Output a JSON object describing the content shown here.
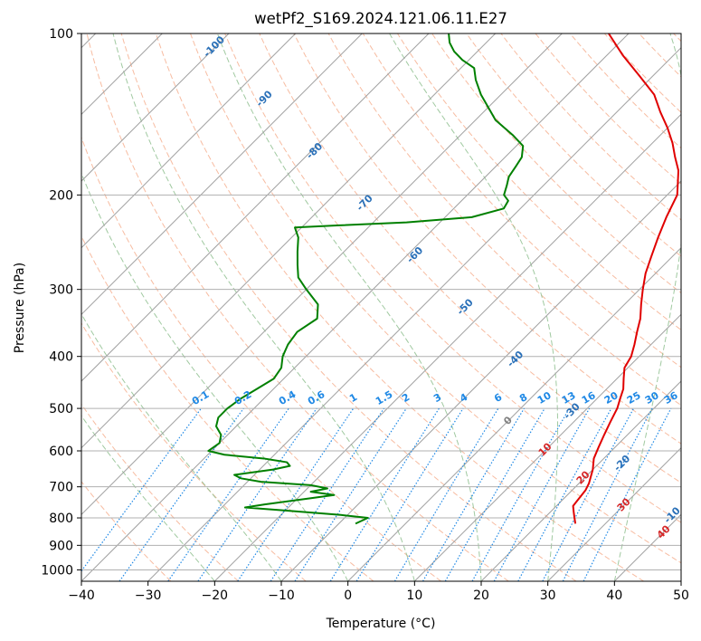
{
  "chart_data": {
    "type": "line",
    "title": "wetPf2_S169.2024.121.06.11.E27",
    "xlabel": "Temperature (°C)",
    "ylabel": "Pressure (hPa)",
    "xlim": [
      -40,
      50
    ],
    "ylim": [
      1050,
      100
    ],
    "y_scale": "log",
    "grid": true,
    "x_ticks": [
      -40,
      -30,
      -20,
      -10,
      0,
      10,
      20,
      30,
      40,
      50
    ],
    "y_ticks": [
      100,
      200,
      300,
      400,
      500,
      600,
      700,
      800,
      900,
      1000
    ],
    "colors": {
      "temperature": "#e00000",
      "dewpoint": "#008000",
      "isotherm": "#a0a0a0",
      "dry_adiabat": "#f4a582",
      "moist_adiabat": "#8fbf8f",
      "mixing_ratio": "#1e88e5",
      "isotherm_label": "#2a70b8",
      "dry_adiabat_label": "#d62728",
      "zero_label": "#808080"
    },
    "series": [
      {
        "key": "temperature",
        "points": [
          [
            25.5,
            820
          ],
          [
            24.5,
            800
          ],
          [
            23.5,
            780
          ],
          [
            22.5,
            760
          ],
          [
            22.3,
            740
          ],
          [
            22.0,
            710
          ],
          [
            21.5,
            690
          ],
          [
            20.0,
            650
          ],
          [
            18.5,
            620
          ],
          [
            17.5,
            590
          ],
          [
            16.5,
            560
          ],
          [
            15.5,
            530
          ],
          [
            14.5,
            500
          ],
          [
            13.5,
            480
          ],
          [
            12.5,
            460
          ],
          [
            11.0,
            440
          ],
          [
            9.5,
            420
          ],
          [
            8.8,
            400
          ],
          [
            7.5,
            380
          ],
          [
            6.0,
            360
          ],
          [
            4.5,
            340
          ],
          [
            2.5,
            320
          ],
          [
            0.5,
            300
          ],
          [
            -1.5,
            280
          ],
          [
            -3.2,
            260
          ],
          [
            -5.0,
            240
          ],
          [
            -6.8,
            220
          ],
          [
            -8.5,
            200
          ],
          [
            -10.2,
            190
          ],
          [
            -12.0,
            180
          ],
          [
            -14.5,
            170
          ],
          [
            -17.0,
            160
          ],
          [
            -20.0,
            150
          ],
          [
            -23.5,
            140
          ],
          [
            -27.0,
            130
          ],
          [
            -32.0,
            120
          ],
          [
            -37.5,
            110
          ],
          [
            -43.0,
            100
          ]
        ]
      },
      {
        "key": "dewpoint",
        "points": [
          [
            -7.5,
            820
          ],
          [
            -6.5,
            800
          ],
          [
            -11.0,
            790
          ],
          [
            -20.0,
            775
          ],
          [
            -26.5,
            765
          ],
          [
            -24.0,
            755
          ],
          [
            -18.0,
            735
          ],
          [
            -15.0,
            725
          ],
          [
            -19.0,
            715
          ],
          [
            -17.0,
            705
          ],
          [
            -20.0,
            695
          ],
          [
            -28.0,
            685
          ],
          [
            -31.5,
            675
          ],
          [
            -33.0,
            665
          ],
          [
            -28.0,
            650
          ],
          [
            -26.0,
            640
          ],
          [
            -27.0,
            630
          ],
          [
            -31.0,
            620
          ],
          [
            -37.5,
            610
          ],
          [
            -40.5,
            600
          ],
          [
            -40.0,
            580
          ],
          [
            -41.0,
            560
          ],
          [
            -43.0,
            540
          ],
          [
            -44.0,
            520
          ],
          [
            -44.0,
            500
          ],
          [
            -43.5,
            480
          ],
          [
            -42.5,
            460
          ],
          [
            -41.5,
            440
          ],
          [
            -42.0,
            420
          ],
          [
            -43.5,
            400
          ],
          [
            -44.5,
            380
          ],
          [
            -45.0,
            360
          ],
          [
            -44.0,
            340
          ],
          [
            -46.0,
            320
          ],
          [
            -50.0,
            300
          ],
          [
            -53.0,
            285
          ],
          [
            -55.0,
            270
          ],
          [
            -57.0,
            255
          ],
          [
            -59.0,
            240
          ],
          [
            -61.0,
            230
          ],
          [
            -55.0,
            228
          ],
          [
            -45.0,
            225
          ],
          [
            -36.0,
            220
          ],
          [
            -32.5,
            212
          ],
          [
            -33.0,
            205
          ],
          [
            -34.5,
            200
          ],
          [
            -35.5,
            192
          ],
          [
            -36.5,
            185
          ],
          [
            -37.0,
            177
          ],
          [
            -37.5,
            170
          ],
          [
            -39.0,
            162
          ],
          [
            -42.0,
            155
          ],
          [
            -47.0,
            145
          ],
          [
            -53.0,
            130
          ],
          [
            -56.0,
            122
          ],
          [
            -58.0,
            116
          ],
          [
            -61.0,
            112
          ],
          [
            -63.5,
            108
          ],
          [
            -65.5,
            104
          ],
          [
            -67.0,
            100
          ]
        ]
      }
    ],
    "isotherm_labels": [
      "-100",
      "-90",
      "-80",
      "-70",
      "-60",
      "-50",
      "-40",
      "-30",
      "-20",
      "-10",
      "0"
    ],
    "isotherm_label_values": [
      -100,
      -90,
      -80,
      -70,
      -60,
      -50,
      -40,
      -30,
      -20,
      -10,
      0
    ],
    "mixing_ratio_labels": [
      "0.1",
      "0.2",
      "0.4",
      "0.6",
      "1",
      "1.5",
      "2",
      "3",
      "4",
      "6",
      "8",
      "10",
      "13",
      "16",
      "20",
      "25",
      "30",
      "36"
    ],
    "mixing_ratio_values": [
      0.1,
      0.2,
      0.4,
      0.6,
      1,
      1.5,
      2,
      3,
      4,
      6,
      8,
      10,
      13,
      16,
      20,
      25,
      30,
      36
    ],
    "dry_adiabat_labels": [
      "10",
      "20",
      "30",
      "40"
    ],
    "dry_adiabat_label_values": [
      10,
      20,
      30,
      40
    ]
  }
}
